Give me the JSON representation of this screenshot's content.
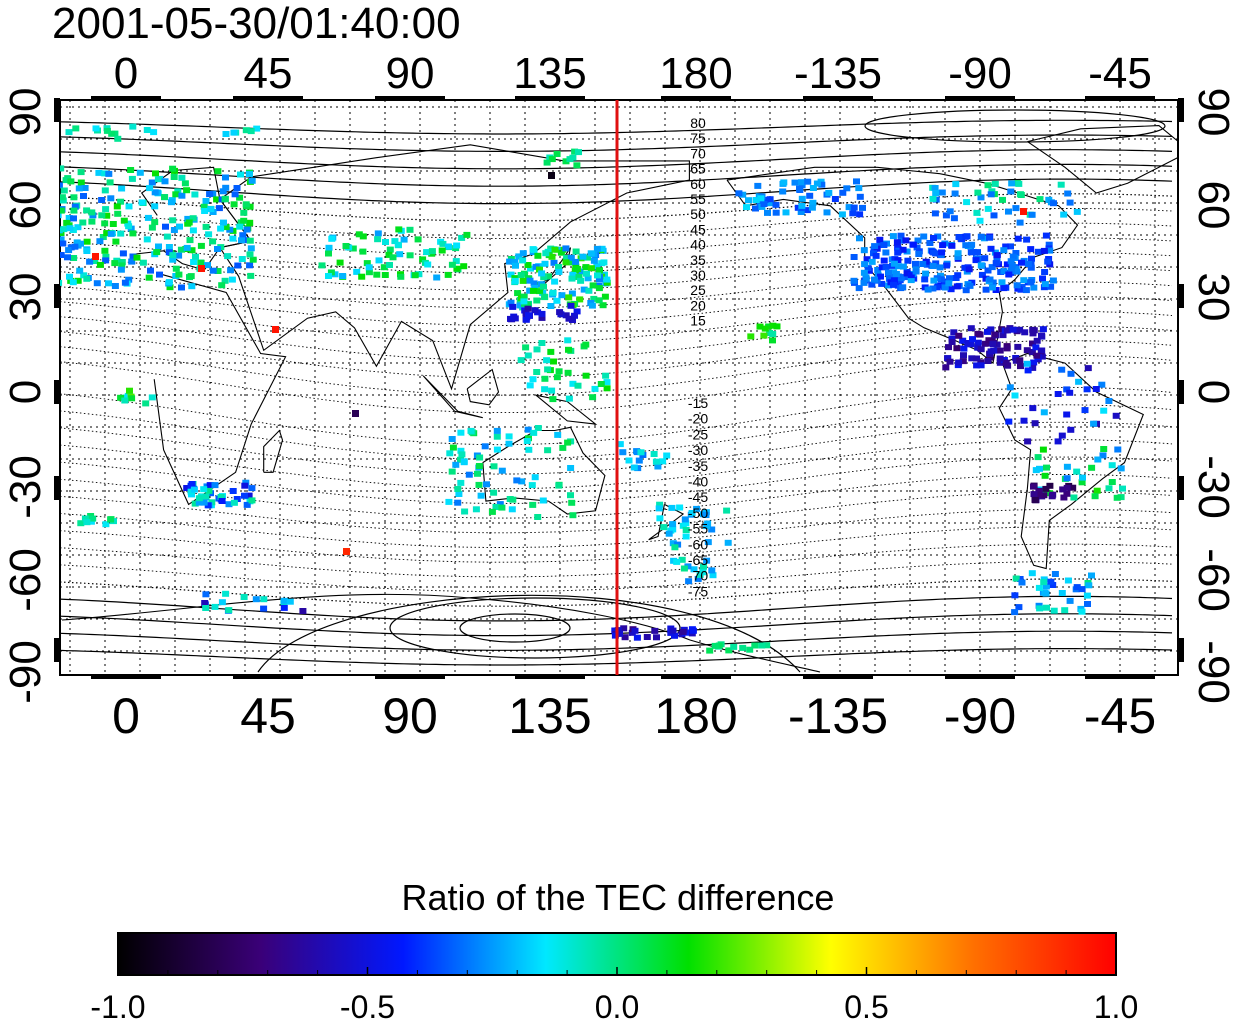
{
  "title": "2001-05-30/01:40:00",
  "map": {
    "x_tick_labels": [
      "0",
      "45",
      "90",
      "135",
      "180",
      "-135",
      "-90",
      "-45"
    ],
    "y_tick_labels": [
      "90",
      "60",
      "30",
      "0",
      "-30",
      "-60",
      "-90"
    ],
    "contour_labels_north": [
      "80",
      "75",
      "70",
      "65",
      "60",
      "55",
      "50",
      "45",
      "40",
      "35",
      "30",
      "25",
      "20",
      "15"
    ],
    "contour_labels_south": [
      "-15",
      "-20",
      "-25",
      "-30",
      "-35",
      "-40",
      "-45",
      "-50",
      "-55",
      "-60",
      "-65",
      "-70",
      "-75"
    ],
    "meridian_line_color": "#e01010",
    "grid": "dotted"
  },
  "colorbar": {
    "title": "Ratio of the TEC difference",
    "tick_labels": [
      "-1.0",
      "-0.5",
      "0.0",
      "0.5",
      "1.0"
    ],
    "range": [
      -1.0,
      1.0
    ],
    "colormap": [
      "#000000",
      "#3a0078",
      "#0018ff",
      "#00e8ff",
      "#00e000",
      "#ffff00",
      "#ff7000",
      "#ff0000"
    ]
  }
}
